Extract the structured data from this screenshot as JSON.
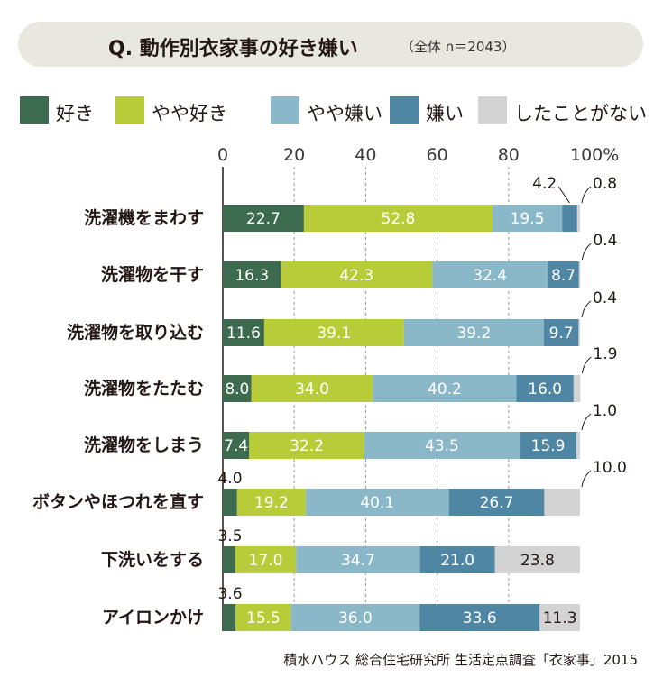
{
  "title": {
    "main": "Q. 動作別衣家事の好き嫌い",
    "sub": "（全体 n＝2043）"
  },
  "colors": {
    "like": "#3d6b4f",
    "somewhat_like": "#b8cc3a",
    "somewhat_dislike": "#8ab8c8",
    "dislike": "#4f86a4",
    "never": "#d3d3d3"
  },
  "legend": [
    {
      "label": "好き",
      "color": "#3d6b4f"
    },
    {
      "label": "やや好き",
      "color": "#b8cc3a"
    },
    {
      "label": "やや嫌い",
      "color": "#8ab8c8"
    },
    {
      "label": "嫌い",
      "color": "#4f86a4"
    },
    {
      "label": "したことがない",
      "color": "#d3d3d3"
    }
  ],
  "chart_data": {
    "type": "bar",
    "orientation": "horizontal",
    "stacked": true,
    "x_ticks": [
      "0",
      "20",
      "40",
      "60",
      "80",
      "100%"
    ],
    "xlim": [
      0,
      100
    ],
    "grid": "dashed vertical",
    "legend_placement": "top",
    "categories": [
      "洗濯機をまわす",
      "洗濯物を干す",
      "洗濯物を取り込む",
      "洗濯物をたたむ",
      "洗濯物をしまう",
      "ボタンやほつれを直す",
      "下洗いをする",
      "アイロンかけ"
    ],
    "series": [
      {
        "name": "好き",
        "values": [
          22.7,
          16.3,
          11.6,
          8.0,
          7.4,
          4.0,
          3.5,
          3.6
        ]
      },
      {
        "name": "やや好き",
        "values": [
          52.8,
          42.3,
          39.1,
          34.0,
          32.2,
          19.2,
          17.0,
          15.5
        ]
      },
      {
        "name": "やや嫌い",
        "values": [
          19.5,
          32.4,
          39.2,
          40.2,
          43.5,
          40.1,
          34.7,
          36.0
        ]
      },
      {
        "name": "嫌い",
        "values": [
          4.2,
          8.7,
          9.7,
          16.0,
          15.9,
          26.7,
          21.0,
          33.6
        ]
      },
      {
        "name": "したことがない",
        "values": [
          0.8,
          0.4,
          0.4,
          1.9,
          1.0,
          10.0,
          23.8,
          11.3
        ]
      }
    ],
    "labels": [
      [
        "22.7",
        "52.8",
        "19.5",
        "4.2",
        "0.8"
      ],
      [
        "16.3",
        "42.3",
        "32.4",
        "8.7",
        "0.4"
      ],
      [
        "11.6",
        "39.1",
        "39.2",
        "9.7",
        "0.4"
      ],
      [
        "8.0",
        "34.0",
        "40.2",
        "16.0",
        "1.9"
      ],
      [
        "7.4",
        "32.2",
        "43.5",
        "15.9",
        "1.0"
      ],
      [
        "4.0",
        "19.2",
        "40.1",
        "26.7",
        "10.0"
      ],
      [
        "3.5",
        "17.0",
        "34.7",
        "21.0",
        "23.8"
      ],
      [
        "3.6",
        "15.5",
        "36.0",
        "33.6",
        "11.3"
      ]
    ]
  },
  "source": "積水ハウス 総合住宅研究所 生活定点調査「衣家事」2015"
}
